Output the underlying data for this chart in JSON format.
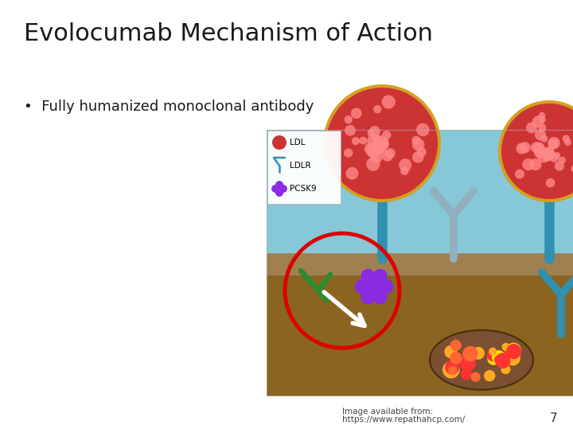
{
  "title": "Evolocumab Mechanism of Action",
  "bullet": "•  Fully humanized monoclonal antibody",
  "caption_line1": "Image available from:",
  "caption_line2": "https://www.repathahcp.com/",
  "page_number": "7",
  "background_color": "#ffffff",
  "title_color": "#1a1a1a",
  "title_fontsize": 22,
  "bullet_fontsize": 13,
  "caption_fontsize": 7.5,
  "page_number_fontsize": 11,
  "sky_color": "#87C8D8",
  "ground_color": "#8B6420",
  "ground_top_color": "#A08050",
  "teal_color": "#3090B0",
  "gray_receptor_color": "#90B0C0",
  "ldl_outer_color": "#D4A020",
  "ldl_inner_color": "#CC3333",
  "ldl_bump_color": "#FF7777",
  "antibody_color": "#2E8B2E",
  "pcsk9_color": "#8B2BE2",
  "endo_color": "#6B4226",
  "red_circle_color": "#DD0000",
  "legend_label_ldl": "LDL",
  "legend_label_ldlr": "LDLR",
  "legend_label_pcsk9": "PCSK9"
}
